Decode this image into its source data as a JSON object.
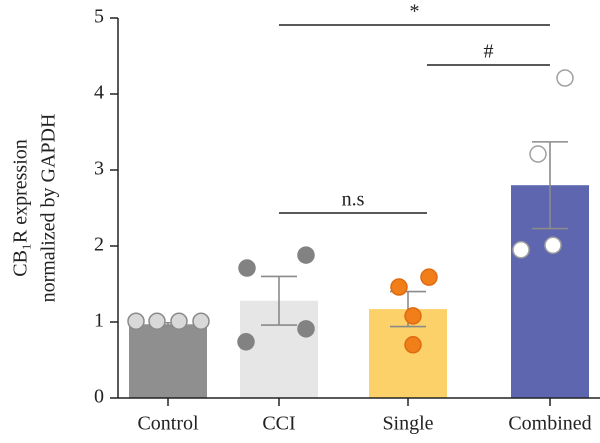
{
  "chart_data": {
    "type": "bar",
    "ylabel": [
      "CB₁R expression",
      "normalized by GAPDH"
    ],
    "categories": [
      "Control",
      "CCI",
      "Single",
      "Combined"
    ],
    "values": [
      0.97,
      1.28,
      1.17,
      2.8
    ],
    "errors": [
      0.02,
      0.32,
      0.23,
      0.57
    ],
    "points": [
      [
        1.01,
        1.01,
        1.01,
        1.01
      ],
      [
        1.71,
        1.88,
        0.74,
        0.91
      ],
      [
        1.46,
        1.59,
        1.08,
        0.7
      ],
      [
        4.21,
        3.21,
        1.95,
        2.01
      ]
    ],
    "colors": [
      "#8f8f8f",
      "#e6e6e6",
      "#fdd16a",
      "#5e66b0"
    ],
    "point_colors": [
      "#d9d9d9",
      "#828282",
      "#f07f1a",
      "#ffffff"
    ],
    "point_strokes": [
      "#8a8a8a",
      "#828282",
      "#e06a10",
      "#a0a0a0"
    ],
    "annotations": [
      "*",
      "#",
      "n.s"
    ],
    "ylim": [
      0,
      5
    ],
    "yticks": [
      0,
      1,
      2,
      3,
      4,
      5
    ]
  }
}
